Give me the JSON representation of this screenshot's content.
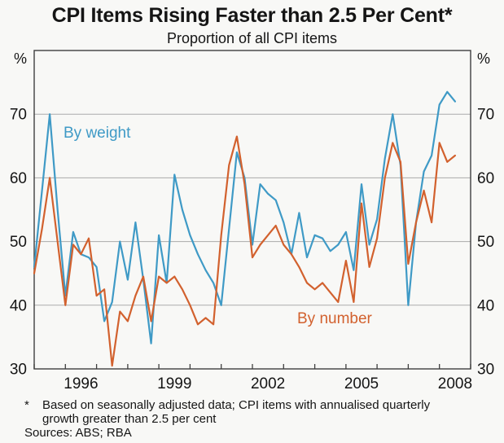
{
  "header": {
    "title": "CPI Items Rising Faster than 2.5 Per Cent*",
    "subtitle": "Proportion of all CPI items"
  },
  "chart_data": {
    "type": "line",
    "title": "CPI Items Rising Faster than 2.5 Per Cent*",
    "subtitle": "Proportion of all CPI items",
    "unit": "%",
    "x_start_year": 1995.0,
    "x_step_years": 0.25,
    "xlim": [
      1995,
      2009
    ],
    "ylim": [
      30,
      80
    ],
    "grid": "horizontal-only",
    "y_gridlines": [
      40,
      50,
      60,
      70
    ],
    "y_axis_labels": [
      70,
      60,
      50,
      40,
      30
    ],
    "x_tick_years": [
      1995,
      1996,
      1997,
      1998,
      1999,
      2000,
      2001,
      2002,
      2003,
      2004,
      2005,
      2006,
      2007,
      2008,
      2009
    ],
    "x_axis_labels": [
      "1996",
      "1999",
      "2002",
      "2005",
      "2008"
    ],
    "series": [
      {
        "name": "By weight",
        "color": "#3f9ac6",
        "values": [
          46,
          58,
          70,
          55,
          41.5,
          51.5,
          48,
          47.5,
          46,
          37.5,
          40.5,
          50,
          44,
          53,
          44,
          34,
          51,
          43.5,
          60.5,
          55,
          51,
          48,
          45.5,
          43.5,
          40,
          52,
          64,
          60,
          49.5,
          59,
          57.5,
          56.5,
          53,
          48,
          54.5,
          47.5,
          51,
          50.5,
          48.5,
          49.5,
          51.5,
          45.5,
          59,
          49.5,
          53.5,
          63,
          70,
          62,
          40,
          53,
          61,
          63.5,
          71.5,
          73.5,
          72
        ]
      },
      {
        "name": "By number",
        "color": "#d2612e",
        "values": [
          45,
          52,
          60,
          50,
          40,
          49.5,
          48,
          50.5,
          41.5,
          42.5,
          30.5,
          39,
          37.5,
          41.5,
          44.5,
          37.5,
          44.5,
          43.5,
          44.5,
          42.5,
          40,
          37,
          38,
          37,
          51,
          62,
          66.5,
          59,
          47.5,
          49.5,
          51,
          52.5,
          49.5,
          48,
          46,
          43.5,
          42.5,
          43.5,
          42,
          40.5,
          47,
          40.5,
          56,
          46,
          50.5,
          60,
          65.5,
          62.5,
          46.5,
          53,
          58,
          53,
          65.5,
          62.5,
          63.5
        ]
      }
    ],
    "legend_position": "inline-annotations"
  },
  "legend": {
    "by_weight": "By weight",
    "by_number": "By number"
  },
  "footnote": {
    "marker": "*",
    "lines": [
      "Based on seasonally adjusted data; CPI items with annualised quarterly",
      "growth greater than 2.5 per cent"
    ],
    "sources": "Sources: ABS; RBA"
  },
  "colors": {
    "by_weight": "#3f9ac6",
    "by_number": "#d2612e",
    "grid": "#ababab",
    "axis": "#3f3f3f",
    "text": "#151515",
    "background": "#f8f8f6"
  }
}
